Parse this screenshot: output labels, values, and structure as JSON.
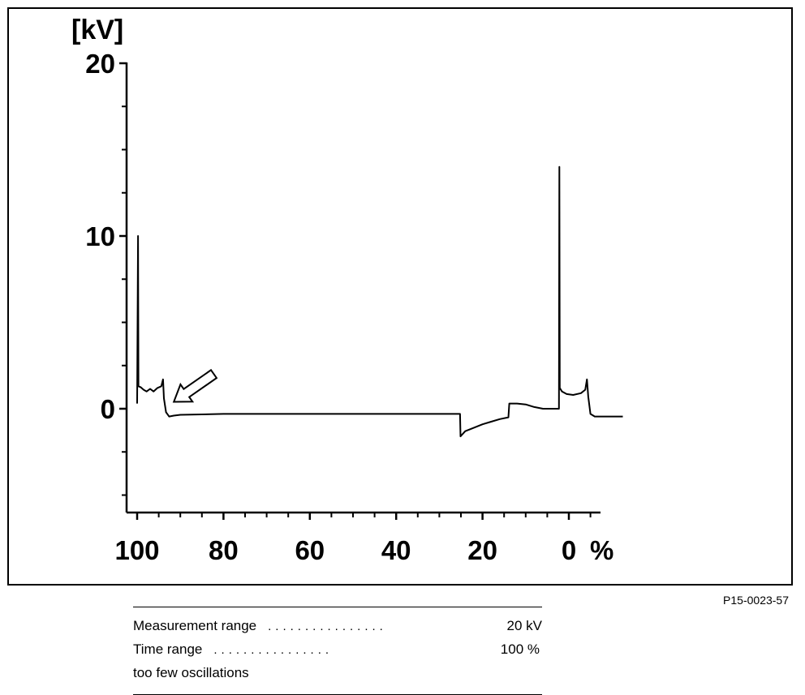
{
  "chart_data": {
    "type": "line",
    "ylabel": "[kV]",
    "xlabel": "",
    "x_unit": "%",
    "x_tick_labels": [
      "100",
      "80",
      "60",
      "40",
      "20",
      "0"
    ],
    "y_tick_labels": [
      "20",
      "10",
      "0"
    ],
    "xlim": [
      100,
      -6.5
    ],
    "ylim": [
      -5.8,
      20
    ],
    "x_reversed": true,
    "grid": false,
    "annotations": [
      {
        "type": "arrow",
        "points_to_x": 91.5,
        "points_to_y": 0.4
      }
    ],
    "series": [
      {
        "points": [
          [
            100,
            0.3
          ],
          [
            99.8,
            10.0
          ],
          [
            99.7,
            1.3
          ],
          [
            99.2,
            1.25
          ],
          [
            98.5,
            1.1
          ],
          [
            97.8,
            1.0
          ],
          [
            97,
            1.15
          ],
          [
            96.2,
            1.0
          ],
          [
            95.3,
            1.2
          ],
          [
            94.4,
            1.3
          ],
          [
            94.0,
            1.7
          ],
          [
            93.8,
            0.6
          ],
          [
            93.3,
            -0.2
          ],
          [
            92.6,
            -0.45
          ],
          [
            91.5,
            -0.4
          ],
          [
            90,
            -0.35
          ],
          [
            80,
            -0.3
          ],
          [
            60,
            -0.3
          ],
          [
            40,
            -0.3
          ],
          [
            25.2,
            -0.3
          ],
          [
            25.1,
            -1.6
          ],
          [
            24,
            -1.3
          ],
          [
            22,
            -1.1
          ],
          [
            20,
            -0.9
          ],
          [
            18,
            -0.75
          ],
          [
            16,
            -0.6
          ],
          [
            14,
            -0.5
          ],
          [
            13.8,
            0.3
          ],
          [
            12,
            0.3
          ],
          [
            10,
            0.25
          ],
          [
            8,
            0.1
          ],
          [
            6,
            0.0
          ],
          [
            2.3,
            0.0
          ],
          [
            2.2,
            14.0
          ],
          [
            2.1,
            1.2
          ],
          [
            1.6,
            1.0
          ],
          [
            0.5,
            0.85
          ],
          [
            -1,
            0.8
          ],
          [
            -2.8,
            0.9
          ],
          [
            -3.8,
            1.1
          ],
          [
            -4.2,
            1.7
          ],
          [
            -4.5,
            0.7
          ],
          [
            -5,
            -0.3
          ],
          [
            -6,
            -0.45
          ],
          [
            -8,
            -0.45
          ],
          [
            -12.5,
            -0.45
          ]
        ]
      }
    ]
  },
  "figure_code": "P15-0023-57",
  "legend": {
    "rows": [
      {
        "label": "Measurement range",
        "leader": "................",
        "value": "20 kV"
      },
      {
        "label": "Time range",
        "leader": "................",
        "value": "100 %"
      },
      {
        "label": "too few oscillations",
        "leader": "",
        "value": ""
      }
    ]
  }
}
